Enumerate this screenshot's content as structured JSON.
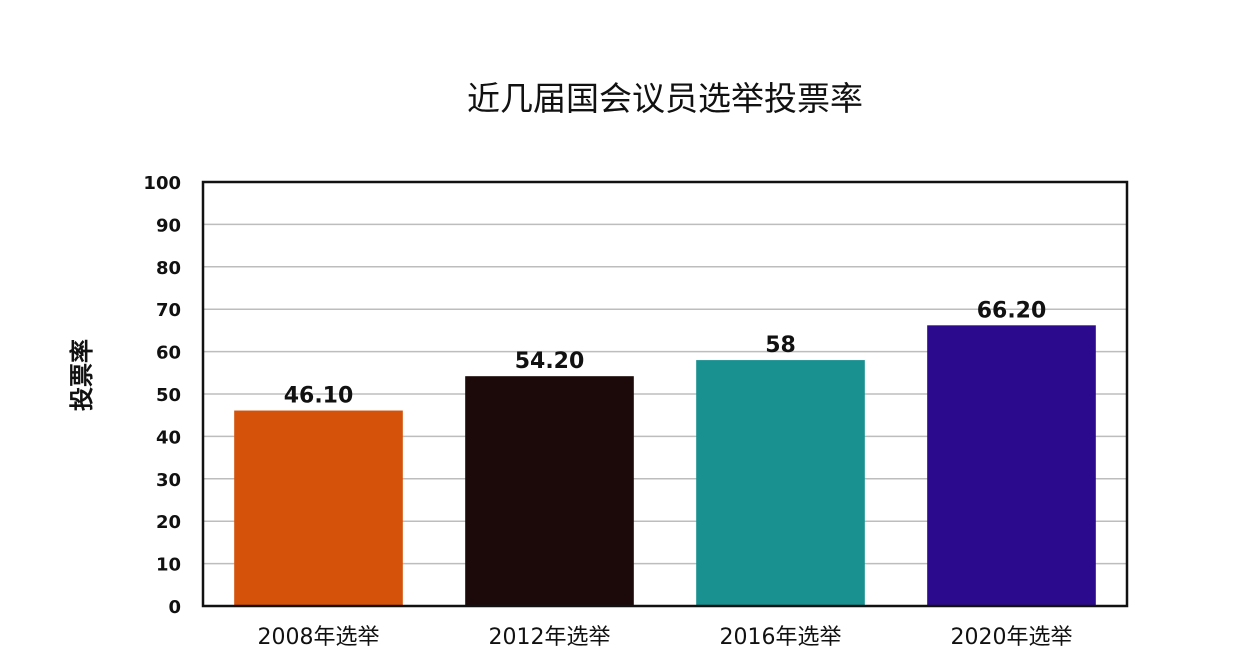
{
  "chart_data": {
    "type": "bar",
    "title": "近几届国会议员选举投票率",
    "ylabel": "投票率",
    "xlabel": "",
    "categories": [
      "2008年选举",
      "2012年选举",
      "2016年选举",
      "2020年选举"
    ],
    "values": [
      46.1,
      54.2,
      58,
      66.2
    ],
    "value_labels": [
      "46.10",
      "54.20",
      "58",
      "66.20"
    ],
    "ylim": [
      0,
      100
    ],
    "yticks": [
      0,
      10,
      20,
      30,
      40,
      50,
      60,
      70,
      80,
      90,
      100
    ],
    "grid": true,
    "legend": "none",
    "colors": [
      "#d4520a",
      "#1c0a0a",
      "#1a9191",
      "#2c0a8e"
    ]
  }
}
